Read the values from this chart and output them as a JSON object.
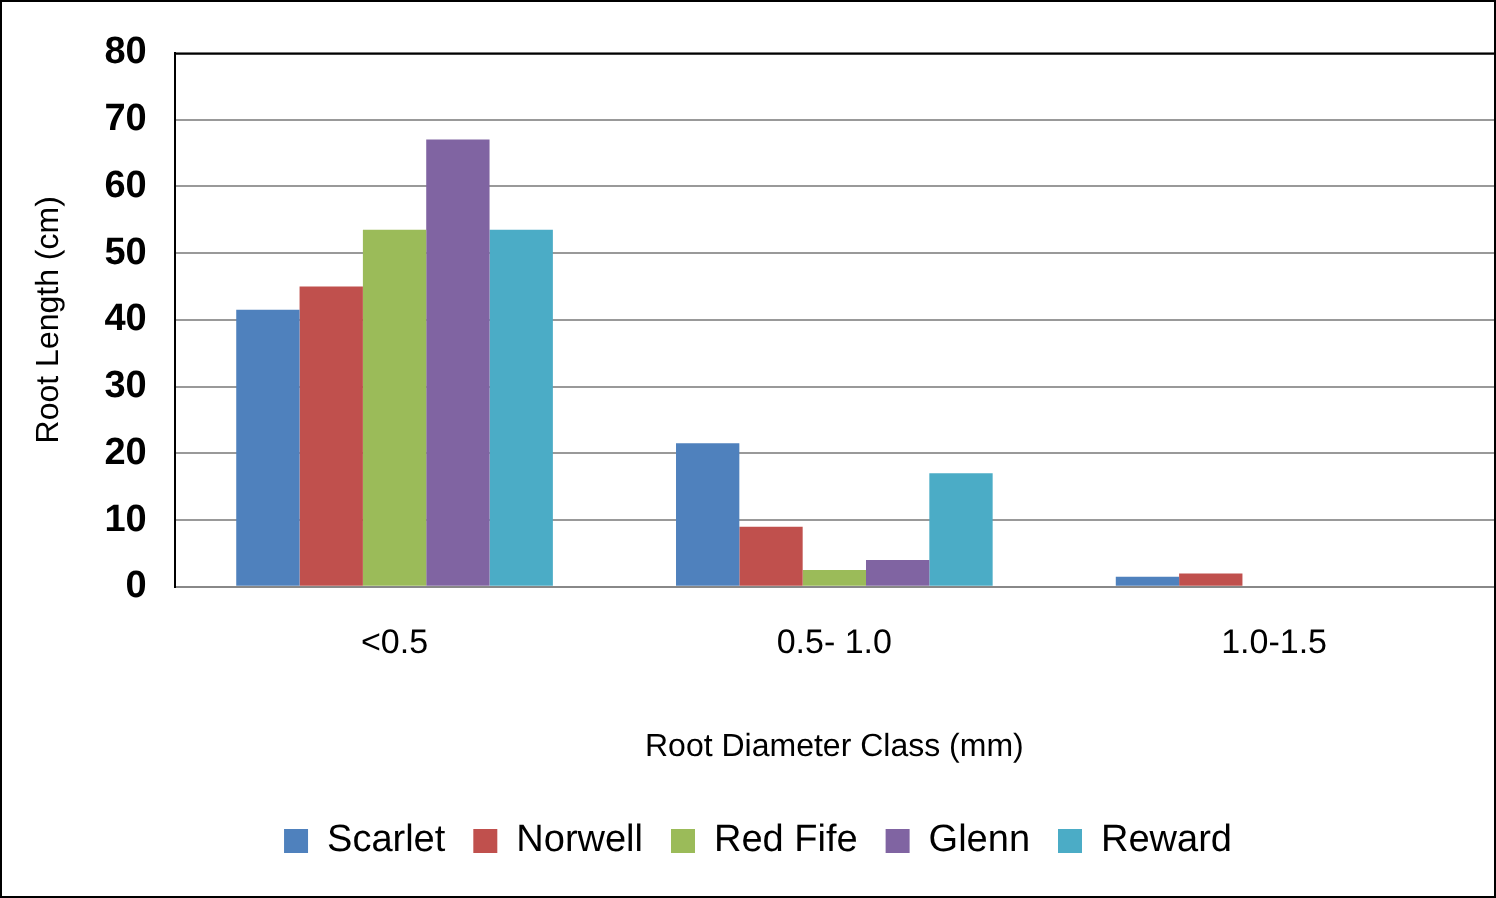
{
  "chart_data": {
    "type": "bar",
    "xlabel": "Root Diameter Class (mm)",
    "ylabel": "Root Length (cm)",
    "categories": [
      "<0.5",
      "0.5- 1.0",
      "1.0-1.5"
    ],
    "series": [
      {
        "name": "Scarlet",
        "color": "#4f81bd",
        "values": [
          41.5,
          21.5,
          1.5
        ]
      },
      {
        "name": "Norwell",
        "color": "#c0504d",
        "values": [
          45,
          9,
          2
        ]
      },
      {
        "name": "Red Fife",
        "color": "#9bbb59",
        "values": [
          53.5,
          2.5,
          0
        ]
      },
      {
        "name": "Glenn",
        "color": "#8064a2",
        "values": [
          67,
          4,
          0
        ]
      },
      {
        "name": "Reward",
        "color": "#4bacc6",
        "values": [
          53.5,
          17,
          0
        ]
      }
    ],
    "ylim": [
      0,
      80
    ],
    "yticks": [
      0,
      10,
      20,
      30,
      40,
      50,
      60,
      70,
      80
    ],
    "grid": "y",
    "legend": "bottom"
  }
}
